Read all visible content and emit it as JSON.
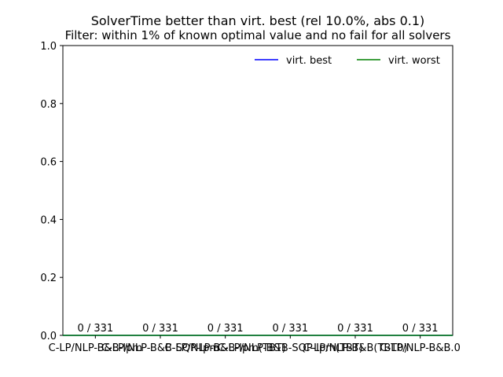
{
  "chart_data": {
    "type": "bar",
    "title": "SolverTime better than virt. best (rel 10.0%, abs 0.1)",
    "subtitle": "Filter: within 1% of known optimal value and no fail for all solvers",
    "xlabel": "",
    "ylabel": "",
    "ylim": [
      0,
      1.0
    ],
    "yticks": [
      "0.0",
      "0.2",
      "0.4",
      "0.6",
      "0.8",
      "1.0"
    ],
    "categories": [
      "C-LP/NLP-B&B-Ipm",
      "C-LP/NLP-B&B-SQP-Ipm",
      "C-LP/NLP-B&B-Ipm(TBT)",
      "C-LP/NLP-B&B-SQP-Ipm(TBT)",
      "C-LP/NLP-B&B(TBT0)",
      "C-LP/NLP-B&B.0"
    ],
    "values": [
      0,
      0,
      0,
      0,
      0,
      0
    ],
    "bar_labels": [
      "0 / 331",
      "0 / 331",
      "0 / 331",
      "0 / 331",
      "0 / 331",
      "0 / 331"
    ],
    "reference_lines": [
      {
        "name": "virt. best",
        "value": 0,
        "color": "#0000ff"
      },
      {
        "name": "virt. worst",
        "value": 0,
        "color": "#008000"
      }
    ],
    "legend": {
      "position": "top-right",
      "entries": [
        "virt. best",
        "virt. worst"
      ]
    },
    "grid": false
  }
}
